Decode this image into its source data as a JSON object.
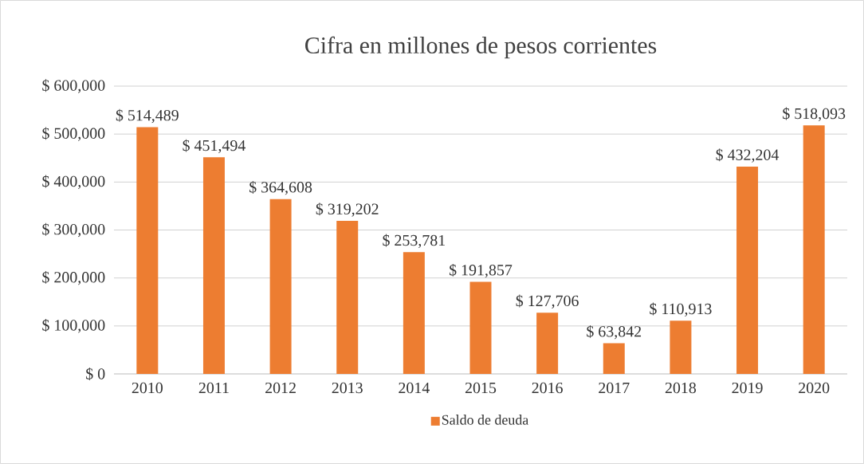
{
  "chart_data": {
    "type": "bar",
    "title": "Cifra en millones de pesos corrientes",
    "categories": [
      "2010",
      "2011",
      "2012",
      "2013",
      "2014",
      "2015",
      "2016",
      "2017",
      "2018",
      "2019",
      "2020"
    ],
    "series": [
      {
        "name": "Saldo de deuda",
        "color": "#ed7d31",
        "values": [
          514489,
          451494,
          364608,
          319202,
          253781,
          191857,
          127706,
          63842,
          110913,
          432204,
          518093
        ],
        "value_labels": [
          "$ 514,489",
          "$ 451,494",
          "$ 364,608",
          "$ 319,202",
          "$ 253,781",
          "$ 191,857",
          "$ 127,706",
          "$ 63,842",
          "$ 110,913",
          "$ 432,204",
          "$ 518,093"
        ]
      }
    ],
    "ylim": [
      0,
      600000
    ],
    "yticks": [
      {
        "value": 0,
        "label": "$ 0"
      },
      {
        "value": 100000,
        "label": "$ 100,000"
      },
      {
        "value": 200000,
        "label": "$ 200,000"
      },
      {
        "value": 300000,
        "label": "$ 300,000"
      },
      {
        "value": 400000,
        "label": "$ 400,000"
      },
      {
        "value": 500000,
        "label": "$ 500,000"
      },
      {
        "value": 600000,
        "label": "$ 600,000"
      }
    ],
    "grid": "y",
    "legend": "bottom"
  }
}
